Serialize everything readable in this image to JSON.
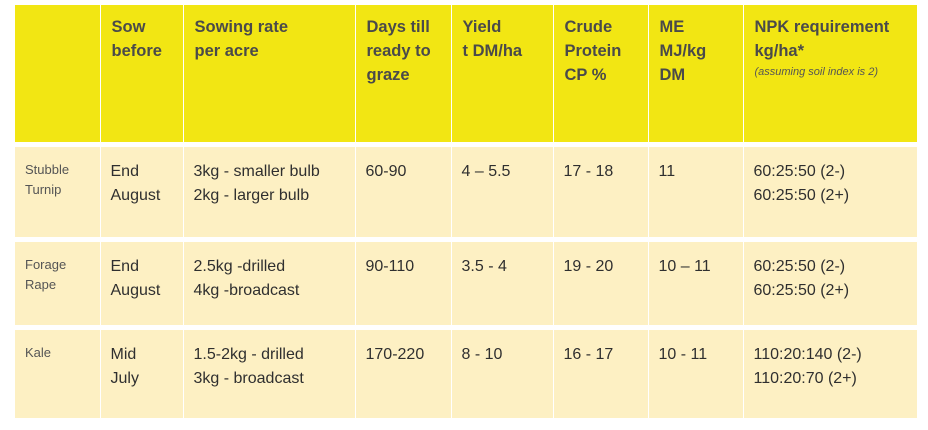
{
  "header": {
    "crop": "",
    "sow_before": [
      "Sow",
      "before"
    ],
    "sowing_rate": [
      "Sowing rate",
      "per acre"
    ],
    "days": [
      "Days till",
      "ready to",
      "graze"
    ],
    "yield": [
      "Yield",
      "t DM/ha"
    ],
    "protein": [
      "Crude",
      "Protein",
      "CP %"
    ],
    "me": [
      "ME",
      "MJ/kg",
      "DM"
    ],
    "npk": [
      "NPK requirement",
      "kg/ha*"
    ],
    "npk_note": "(assuming soil index is 2)"
  },
  "rows": [
    {
      "crop": [
        "Stubble",
        "Turnip"
      ],
      "sow_before": [
        "End",
        "August"
      ],
      "sowing_rate": [
        "3kg - smaller bulb",
        "2kg - larger bulb"
      ],
      "days": "60-90",
      "yield": "4 – 5.5",
      "protein": "17 - 18",
      "me": "11",
      "npk": [
        "60:25:50 (2-)",
        "60:25:50 (2+)"
      ]
    },
    {
      "crop": [
        "Forage",
        "Rape"
      ],
      "sow_before": [
        "End",
        "August"
      ],
      "sowing_rate": [
        "2.5kg -drilled",
        "4kg -broadcast"
      ],
      "days": "90-110",
      "yield": "3.5 - 4",
      "protein": "19 - 20",
      "me": "10 – 11",
      "npk": [
        "60:25:50 (2-)",
        "60:25:50 (2+)"
      ]
    },
    {
      "crop": [
        "Kale"
      ],
      "sow_before": [
        "Mid",
        "July"
      ],
      "sowing_rate": [
        "1.5-2kg - drilled",
        "3kg - broadcast"
      ],
      "days": "170-220",
      "yield": "8 - 10",
      "protein": "16 - 17",
      "me": "10 - 11",
      "npk": [
        "110:20:140 (2-)",
        "110:20:70 (2+)"
      ]
    }
  ],
  "colors": {
    "header_bg": "#f2e613",
    "row_bg": "#fdf0c3"
  }
}
